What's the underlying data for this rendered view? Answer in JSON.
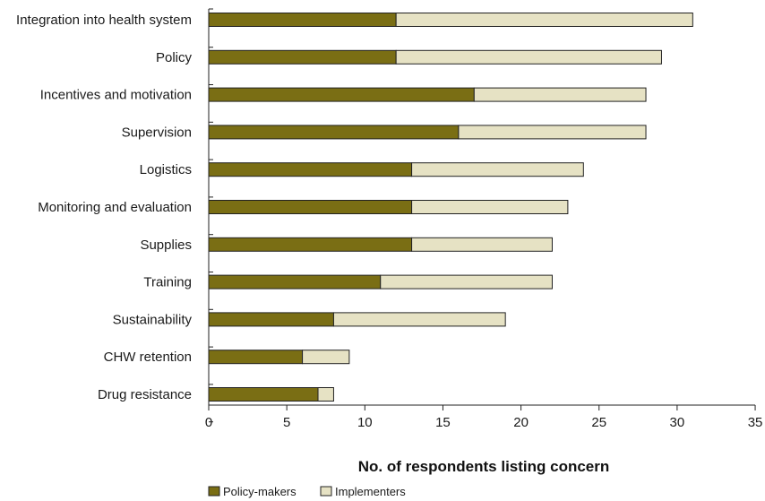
{
  "chart_data": {
    "type": "bar",
    "orientation": "horizontal",
    "stacked": true,
    "categories": [
      "Integration into health system",
      "Policy",
      "Incentives and motivation",
      "Supervision",
      "Logistics",
      "Monitoring and evaluation",
      "Supplies",
      "Training",
      "Sustainability",
      "CHW retention",
      "Drug resistance"
    ],
    "series": [
      {
        "name": "Policy-makers",
        "values": [
          12,
          12,
          17,
          16,
          13,
          13,
          13,
          11,
          8,
          6,
          7
        ],
        "color": "#7a6e14"
      },
      {
        "name": "Implementers",
        "values": [
          19,
          17,
          11,
          12,
          11,
          10,
          9,
          11,
          11,
          3,
          1
        ],
        "color": "#e6e2c4"
      }
    ],
    "xlabel": "No. of respondents listing concern",
    "xlim": [
      0,
      35
    ],
    "xticks": [
      0,
      5,
      10,
      15,
      20,
      25,
      30,
      35
    ],
    "grid": false,
    "legend_position": "bottom-left"
  }
}
